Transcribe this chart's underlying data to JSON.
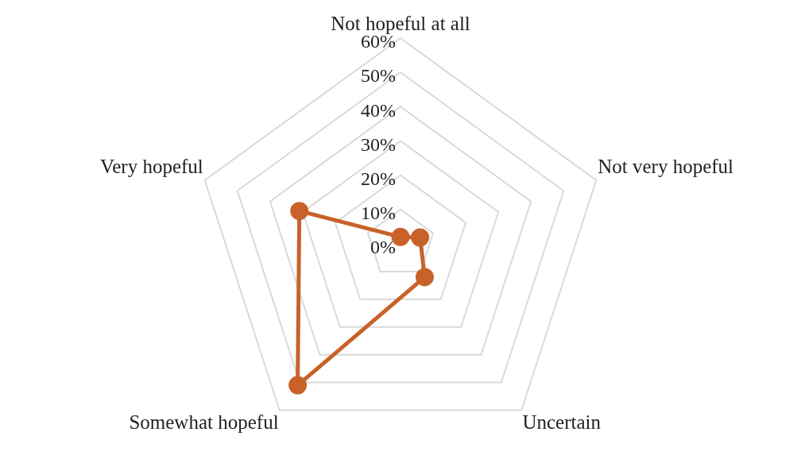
{
  "chart_data": {
    "type": "radar",
    "categories": [
      "Not hopeful at all",
      "Not very hopeful",
      "Uncertain",
      "Somewhat hopeful",
      "Very hopeful"
    ],
    "series": [
      {
        "color": "#c8622a",
        "values": [
          2,
          6,
          12,
          51,
          31
        ]
      }
    ],
    "ylim": [
      0,
      60
    ],
    "yticks": [
      {
        "value": 0,
        "label": "0%"
      },
      {
        "value": 10,
        "label": "10%"
      },
      {
        "value": 20,
        "label": "20%"
      },
      {
        "value": 30,
        "label": "30%"
      },
      {
        "value": 40,
        "label": "40%"
      },
      {
        "value": 50,
        "label": "50%"
      },
      {
        "value": 60,
        "label": "60%"
      }
    ],
    "grid": true,
    "legend": false,
    "marker": "circle",
    "line_style": "solid"
  }
}
